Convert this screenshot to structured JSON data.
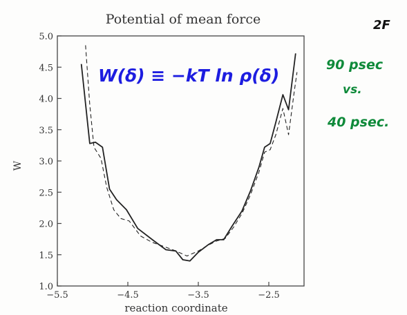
{
  "chart_data": {
    "type": "line",
    "title": "Potential of mean force",
    "xlabel": "reaction coordinate",
    "ylabel": "W",
    "xlim": [
      -5.5,
      -2.0
    ],
    "ylim": [
      1.0,
      5.0
    ],
    "xticks": [
      {
        "value": -5.5,
        "label": "−5.5"
      },
      {
        "value": -4.5,
        "label": "−4.5"
      },
      {
        "value": -3.5,
        "label": "−3.5"
      },
      {
        "value": -2.5,
        "label": "−2.5"
      }
    ],
    "yticks": [
      {
        "value": 1.0,
        "label": "1.0"
      },
      {
        "value": 1.5,
        "label": "1.5"
      },
      {
        "value": 2.0,
        "label": "2.0"
      },
      {
        "value": 2.5,
        "label": "2.5"
      },
      {
        "value": 3.0,
        "label": "3.0"
      },
      {
        "value": 3.5,
        "label": "3.5"
      },
      {
        "value": 4.0,
        "label": "4.0"
      },
      {
        "value": 4.5,
        "label": "4.5"
      },
      {
        "value": 5.0,
        "label": "5.0"
      }
    ],
    "grid": false,
    "legend": "none",
    "series": [
      {
        "style": "solid",
        "points": [
          [
            -5.16,
            4.55
          ],
          [
            -5.04,
            3.28
          ],
          [
            -4.96,
            3.3
          ],
          [
            -4.86,
            3.22
          ],
          [
            -4.76,
            2.55
          ],
          [
            -4.66,
            2.38
          ],
          [
            -4.52,
            2.22
          ],
          [
            -4.36,
            1.92
          ],
          [
            -4.14,
            1.73
          ],
          [
            -3.96,
            1.58
          ],
          [
            -3.82,
            1.56
          ],
          [
            -3.72,
            1.42
          ],
          [
            -3.62,
            1.4
          ],
          [
            -3.5,
            1.54
          ],
          [
            -3.36,
            1.66
          ],
          [
            -3.24,
            1.74
          ],
          [
            -3.14,
            1.74
          ],
          [
            -3.02,
            1.96
          ],
          [
            -2.88,
            2.2
          ],
          [
            -2.76,
            2.52
          ],
          [
            -2.64,
            2.9
          ],
          [
            -2.56,
            3.22
          ],
          [
            -2.48,
            3.28
          ],
          [
            -2.4,
            3.62
          ],
          [
            -2.3,
            4.06
          ],
          [
            -2.22,
            3.82
          ],
          [
            -2.12,
            4.72
          ]
        ]
      },
      {
        "style": "dashed",
        "points": [
          [
            -5.1,
            4.85
          ],
          [
            -5.04,
            3.9
          ],
          [
            -4.98,
            3.22
          ],
          [
            -4.88,
            3.04
          ],
          [
            -4.8,
            2.58
          ],
          [
            -4.7,
            2.22
          ],
          [
            -4.6,
            2.08
          ],
          [
            -4.48,
            2.04
          ],
          [
            -4.32,
            1.8
          ],
          [
            -4.16,
            1.7
          ],
          [
            -3.96,
            1.62
          ],
          [
            -3.82,
            1.56
          ],
          [
            -3.66,
            1.48
          ],
          [
            -3.5,
            1.56
          ],
          [
            -3.38,
            1.64
          ],
          [
            -3.24,
            1.72
          ],
          [
            -3.12,
            1.76
          ],
          [
            -3.0,
            1.94
          ],
          [
            -2.88,
            2.16
          ],
          [
            -2.76,
            2.46
          ],
          [
            -2.64,
            2.82
          ],
          [
            -2.56,
            3.14
          ],
          [
            -2.48,
            3.18
          ],
          [
            -2.4,
            3.42
          ],
          [
            -2.3,
            3.84
          ],
          [
            -2.22,
            3.42
          ],
          [
            -2.14,
            4.1
          ],
          [
            -2.1,
            4.42
          ]
        ]
      }
    ]
  },
  "annotations": {
    "equation": "W(δ) ≡ −kT ln ρ(δ)",
    "page_mark": "2F",
    "note_line1": "90 psec",
    "note_line2": "vs.",
    "note_line3": "40 psec.",
    "equation_color": "#1d1de0",
    "note_color": "#0f8a3a"
  }
}
